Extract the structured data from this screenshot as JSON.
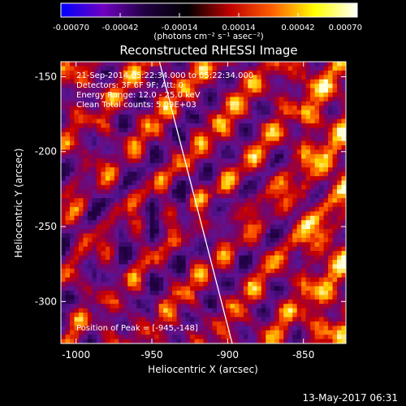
{
  "chart_data": {
    "type": "heatmap",
    "title": "Reconstructed RHESSI Image",
    "xlabel": "Heliocentric X (arcsec)",
    "ylabel": "Heliocentric Y (arcsec)",
    "xlim": [
      -1010,
      -822
    ],
    "ylim": [
      -328,
      -140
    ],
    "xticks": [
      -1000,
      -950,
      -900,
      -850
    ],
    "xtick_labels": [
      "-1000",
      "-950",
      "-900",
      "-850"
    ],
    "yticks": [
      -150,
      -200,
      -250,
      -300
    ],
    "ytick_labels": [
      "-150",
      "-200",
      "-250",
      "-300"
    ],
    "colorbar": {
      "min": -0.0007,
      "max": 0.0007,
      "ticks": [
        -0.0007,
        -0.00042,
        -0.00014,
        0.00014,
        0.00042,
        0.0007
      ],
      "tick_labels": [
        "-0.00070",
        "-0.00042",
        "-0.00014",
        "0.00014",
        "0.00042",
        "0.00070"
      ],
      "unit_label": "(photons cm⁻² s⁻¹ asec⁻²)",
      "colors": [
        "#0000ff",
        "#7000c0",
        "#200040",
        "#000000",
        "#c00000",
        "#ff6000",
        "#ffff00",
        "#ffffff"
      ]
    },
    "annotations": [
      "21-Sep-2014 05:22:34.000 to 05:22:34.000",
      "Detectors: 3F 6F 9F; Att: 0",
      "Energy Range: 12.0 - 25.0 keV",
      "Clean     Total counts: 5.09E+03"
    ],
    "peak_label": "Position of Peak = [-945,-148]",
    "limb_line": {
      "x": [
        -945,
        -897
      ],
      "y": [
        -140,
        -328
      ]
    }
  },
  "footer": {
    "timestamp": "13-May-2017 06:31"
  }
}
